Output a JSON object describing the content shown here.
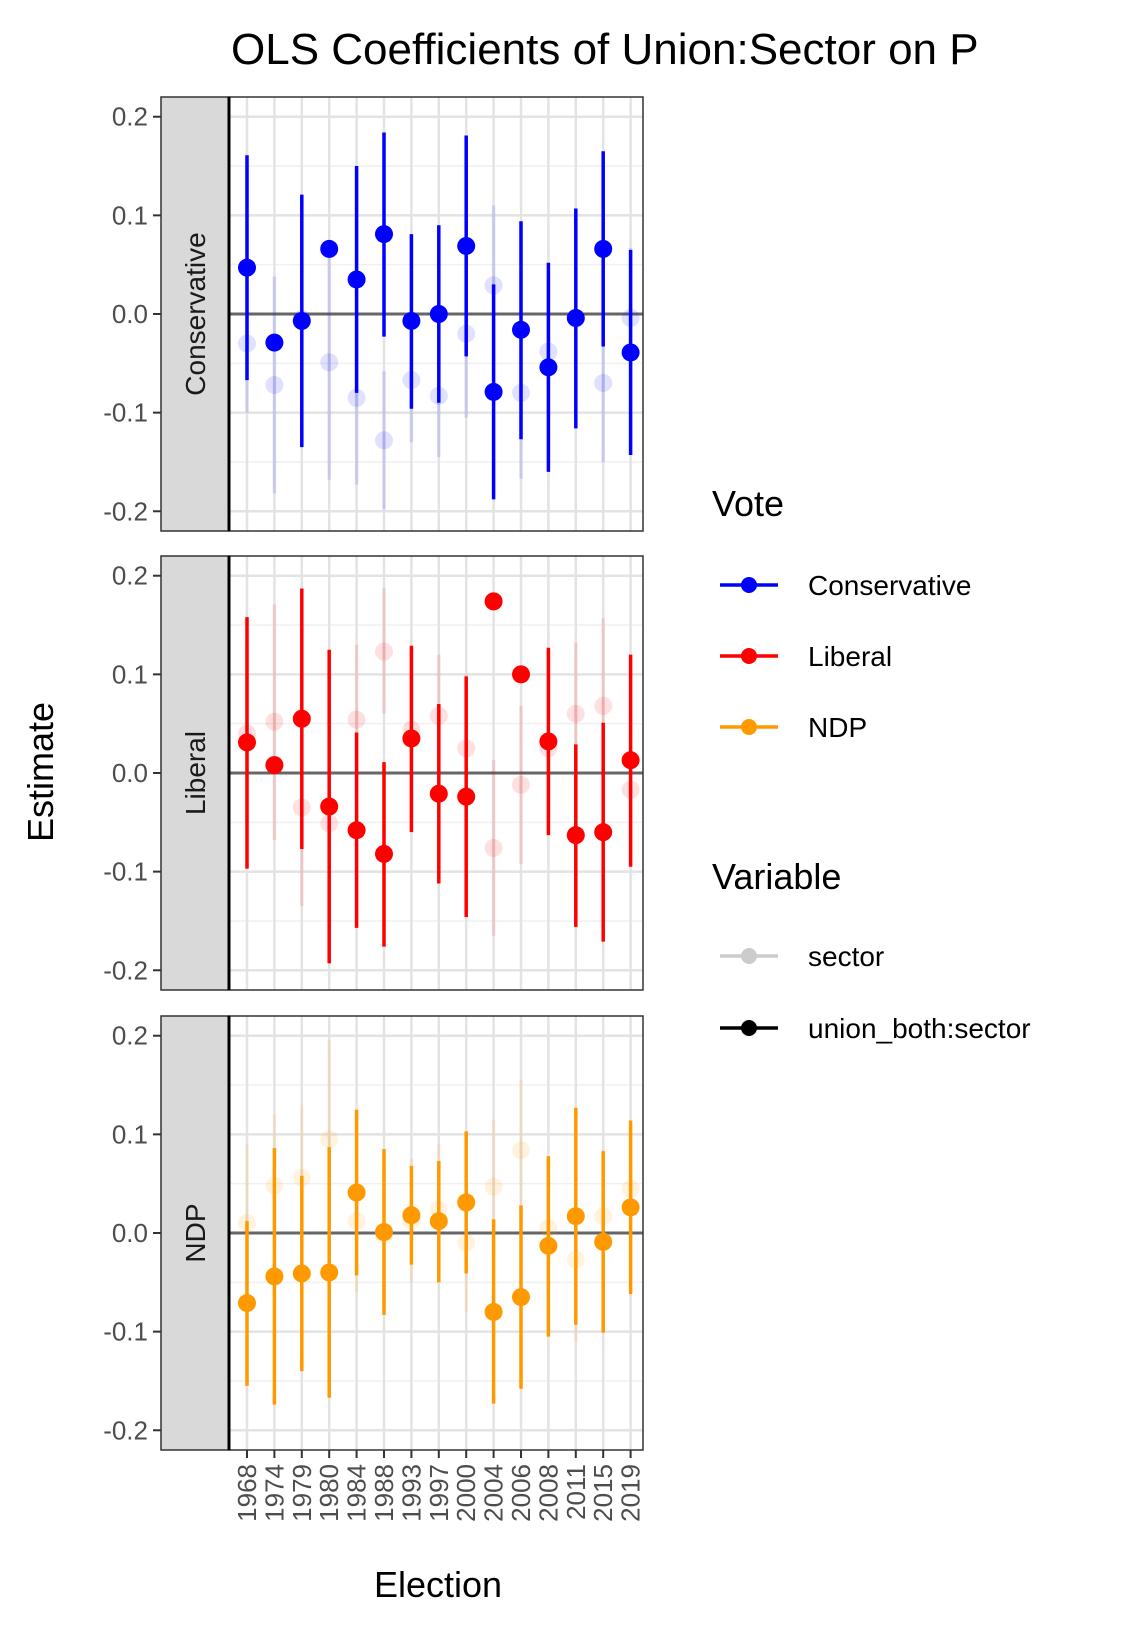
{
  "chart_data": {
    "type": "scatter",
    "title": "OLS Coefficients of Union:Sector on P",
    "xlabel": "Election",
    "ylabel": "Estimate",
    "ylim": [
      -0.22,
      0.22
    ],
    "y_ticks": [
      0.2,
      0.1,
      0.0,
      -0.1,
      -0.2
    ],
    "y_tick_labels": [
      "0.2",
      "0.1",
      "0.0",
      "-0.1",
      "-0.2"
    ],
    "x": [
      "1968",
      "1974",
      "1979",
      "1980",
      "1984",
      "1988",
      "1993",
      "1997",
      "2000",
      "2004",
      "2006",
      "2008",
      "2011",
      "2015",
      "2019"
    ],
    "grid": true,
    "legend_position": "right",
    "legend": {
      "vote_title": "Vote",
      "vote_items": [
        {
          "label": "Conservative",
          "color": "#0000ff"
        },
        {
          "label": "Liberal",
          "color": "#ff0000"
        },
        {
          "label": "NDP",
          "color": "#ff9900"
        }
      ],
      "variable_title": "Variable",
      "variable_items": [
        {
          "label": "sector",
          "color": "#cccccc"
        },
        {
          "label": "union_both:sector",
          "color": "#000000"
        }
      ]
    },
    "panels": [
      {
        "name": "Conservative",
        "color": "#0000ff",
        "series": [
          {
            "variable": "union_both:sector",
            "estimate": [
              0.047,
              -0.029,
              -0.007,
              0.066,
              0.035,
              0.081,
              -0.007,
              0.0,
              0.069,
              -0.079,
              -0.016,
              -0.054,
              -0.004,
              0.066,
              -0.039
            ],
            "lower": [
              -0.067,
              -0.029,
              -0.135,
              0.066,
              -0.08,
              -0.023,
              -0.096,
              -0.09,
              -0.043,
              -0.188,
              -0.127,
              -0.16,
              -0.116,
              -0.033,
              -0.143
            ],
            "upper": [
              0.161,
              -0.029,
              0.121,
              0.066,
              0.15,
              0.184,
              0.081,
              0.09,
              0.181,
              0.03,
              0.094,
              0.052,
              0.107,
              0.165,
              0.065
            ]
          },
          {
            "variable": "sector",
            "estimate": [
              -0.03,
              -0.072,
              -0.005,
              -0.049,
              -0.085,
              -0.128,
              -0.067,
              -0.083,
              -0.02,
              0.029,
              -0.08,
              -0.038,
              -0.005,
              -0.07,
              -0.004
            ],
            "lower": [
              -0.1,
              -0.182,
              -0.09,
              -0.168,
              -0.173,
              -0.198,
              -0.13,
              -0.145,
              -0.105,
              -0.055,
              -0.167,
              -0.11,
              -0.08,
              -0.15,
              -0.075
            ],
            "upper": [
              0.04,
              0.038,
              0.08,
              0.07,
              0.003,
              -0.058,
              -0.004,
              -0.021,
              0.065,
              0.11,
              0.007,
              0.034,
              0.07,
              0.01,
              0.067
            ]
          }
        ]
      },
      {
        "name": "Liberal",
        "color": "#ff0000",
        "series": [
          {
            "variable": "union_both:sector",
            "estimate": [
              0.031,
              0.008,
              0.055,
              -0.034,
              -0.058,
              -0.082,
              0.035,
              -0.021,
              -0.024,
              0.174,
              0.1,
              0.032,
              -0.063,
              -0.06,
              0.013
            ],
            "lower": [
              -0.097,
              0.008,
              -0.077,
              -0.193,
              -0.157,
              -0.176,
              -0.06,
              -0.112,
              -0.146,
              0.174,
              0.1,
              -0.063,
              -0.156,
              -0.171,
              -0.095
            ],
            "upper": [
              0.158,
              0.008,
              0.187,
              0.125,
              0.041,
              0.011,
              0.129,
              0.07,
              0.098,
              0.174,
              0.1,
              0.127,
              0.029,
              0.051,
              0.12
            ]
          },
          {
            "variable": "sector",
            "estimate": [
              0.04,
              0.052,
              -0.035,
              -0.051,
              0.054,
              0.123,
              0.044,
              0.058,
              0.025,
              -0.076,
              -0.012,
              0.025,
              0.06,
              0.068,
              -0.017
            ],
            "lower": [
              -0.05,
              -0.068,
              -0.135,
              -0.15,
              -0.022,
              0.06,
              -0.04,
              -0.01,
              -0.05,
              -0.165,
              -0.092,
              -0.05,
              -0.01,
              -0.01,
              -0.09
            ],
            "upper": [
              0.13,
              0.171,
              0.065,
              0.05,
              0.13,
              0.187,
              0.128,
              0.12,
              0.1,
              0.013,
              0.068,
              0.1,
              0.132,
              0.157,
              0.056
            ]
          }
        ]
      },
      {
        "name": "NDP",
        "color": "#ff9900",
        "series": [
          {
            "variable": "union_both:sector",
            "estimate": [
              -0.071,
              -0.044,
              -0.041,
              -0.04,
              0.041,
              0.001,
              0.018,
              0.012,
              0.031,
              -0.08,
              -0.065,
              -0.013,
              0.017,
              -0.009,
              0.026
            ],
            "lower": [
              -0.155,
              -0.174,
              -0.14,
              -0.167,
              -0.043,
              -0.083,
              -0.032,
              -0.05,
              -0.041,
              -0.173,
              -0.158,
              -0.105,
              -0.093,
              -0.101,
              -0.062
            ],
            "upper": [
              0.012,
              0.086,
              0.058,
              0.087,
              0.125,
              0.085,
              0.068,
              0.073,
              0.103,
              0.014,
              0.028,
              0.078,
              0.127,
              0.083,
              0.114
            ]
          },
          {
            "variable": "sector",
            "estimate": [
              0.01,
              0.048,
              0.056,
              0.095,
              0.012,
              -0.002,
              0.012,
              0.024,
              -0.01,
              0.047,
              0.084,
              0.005,
              -0.027,
              0.017,
              0.045
            ],
            "lower": [
              -0.07,
              -0.02,
              -0.02,
              0.0,
              -0.06,
              -0.07,
              -0.05,
              -0.04,
              -0.08,
              -0.02,
              0.015,
              -0.06,
              -0.11,
              -0.05,
              -0.02
            ],
            "upper": [
              0.09,
              0.12,
              0.13,
              0.195,
              0.085,
              0.065,
              0.075,
              0.09,
              0.06,
              0.115,
              0.155,
              0.07,
              0.055,
              0.085,
              0.11
            ]
          }
        ]
      }
    ]
  }
}
